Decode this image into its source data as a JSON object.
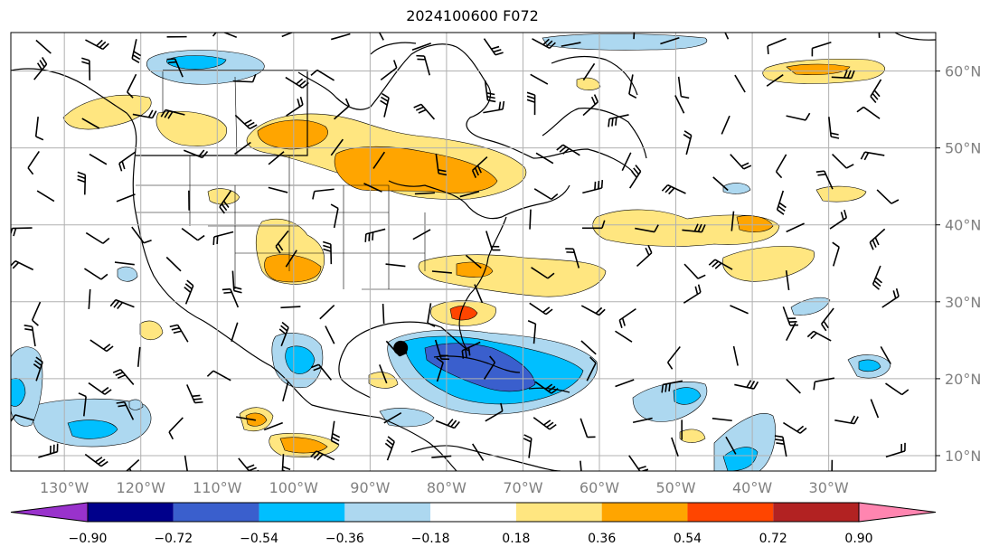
{
  "title": "2024100600 F072",
  "map": {
    "lon_range": [
      -137,
      -16
    ],
    "lat_range": [
      8,
      65
    ],
    "lat_ticks": [
      {
        "value": 60,
        "label": "60°N"
      },
      {
        "value": 50,
        "label": "50°N"
      },
      {
        "value": 40,
        "label": "40°N"
      },
      {
        "value": 30,
        "label": "30°N"
      },
      {
        "value": 20,
        "label": "20°N"
      },
      {
        "value": 10,
        "label": "10°N"
      }
    ],
    "lon_ticks": [
      {
        "value": -130,
        "label": "130°W"
      },
      {
        "value": -120,
        "label": "120°W"
      },
      {
        "value": -110,
        "label": "110°W"
      },
      {
        "value": -100,
        "label": "100°W"
      },
      {
        "value": -90,
        "label": "90°W"
      },
      {
        "value": -80,
        "label": "80°W"
      },
      {
        "value": -70,
        "label": "70°W"
      },
      {
        "value": -60,
        "label": "60°W"
      },
      {
        "value": -50,
        "label": "50°W"
      },
      {
        "value": -40,
        "label": "40°W"
      },
      {
        "value": -30,
        "label": "30°W"
      }
    ],
    "storm_marker": {
      "lon": -86,
      "lat": 24
    }
  },
  "colorbar": {
    "boundaries": [
      "−0.90",
      "−0.72",
      "−0.54",
      "−0.36",
      "−0.18",
      "0.18",
      "0.36",
      "0.54",
      "0.72",
      "0.90"
    ],
    "colors": [
      "#9932cc",
      "#00008b",
      "#3a5fcd",
      "#00bfff",
      "#add8f0",
      "#ffffff",
      "#ffe680",
      "#ffa500",
      "#ff4500",
      "#b22222",
      "#ff85b0"
    ]
  },
  "colors": {
    "grid": "#b0b0b0",
    "coast": "#000000",
    "tick_label": "#808080"
  }
}
